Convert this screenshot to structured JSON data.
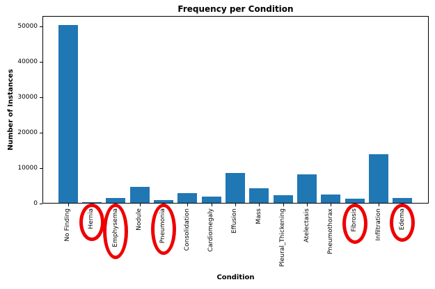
{
  "chart_data": {
    "type": "bar",
    "title": "Frequency per Condition",
    "xlabel": "Condition",
    "ylabel": "Number of Instances",
    "categories": [
      "No Finding",
      "Hernia",
      "Emphysema",
      "Nodule",
      "Pneumonia",
      "Consolidation",
      "Cardiomegaly",
      "Effusion",
      "Mass",
      "Pleural_Thickening",
      "Atelectasis",
      "Pneumothorax",
      "Fibrosis",
      "Infiltration",
      "Edema"
    ],
    "values": [
      50600,
      200,
      1300,
      4600,
      850,
      2750,
      1800,
      8500,
      4100,
      2200,
      8200,
      2400,
      1100,
      13800,
      1400
    ],
    "yticks": [
      0,
      10000,
      20000,
      30000,
      40000,
      50000
    ],
    "ylim": [
      0,
      53000
    ],
    "grid": false,
    "legend": null,
    "bar_color": "#1f77b4",
    "annotations": {
      "circled_categories": [
        "Hernia",
        "Emphysema",
        "Pneumonia",
        "Fibrosis",
        "Edema"
      ],
      "circle_color": "#ee0000"
    }
  }
}
